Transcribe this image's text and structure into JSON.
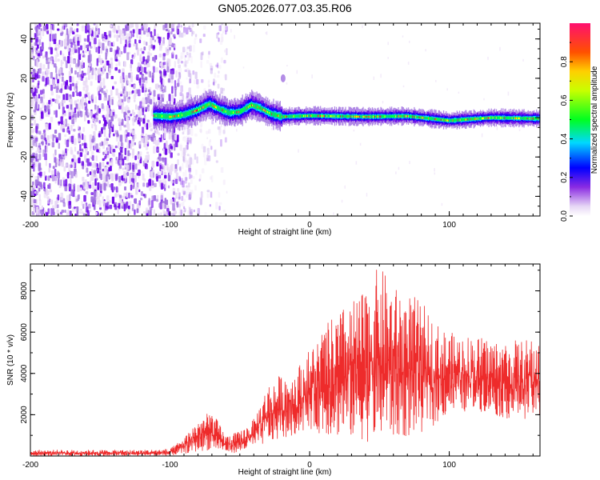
{
  "title": "GN05.2026.077.03.35.R06",
  "colors": {
    "trace": "#ee2b2b",
    "colormap": [
      "#e8d8f5",
      "#a070e0",
      "#6a00e8",
      "#0000ff",
      "#00e0ff",
      "#00ff40",
      "#ffff00",
      "#ff8000",
      "#ff0040",
      "#ff0080"
    ]
  },
  "chart_data": [
    {
      "type": "heatmap",
      "title": "GN05.2026.077.03.35.R06",
      "xlabel": "Height of straight line (km)",
      "ylabel": "Frequency (Hz)",
      "xlim": [
        -200,
        165
      ],
      "ylim": [
        -50,
        48
      ],
      "xticks": [
        -200,
        -100,
        0,
        100
      ],
      "yticks": [
        -40,
        -20,
        0,
        20,
        40
      ],
      "xtick_labels": [
        "-200",
        "-100",
        "0",
        "100"
      ],
      "ytick_labels": [
        "-40",
        "-20",
        "0",
        "20",
        "40"
      ],
      "signal_track": [
        {
          "x": -110,
          "y": 1.0
        },
        {
          "x": -100,
          "y": 0.5
        },
        {
          "x": -90,
          "y": 1.5
        },
        {
          "x": -80,
          "y": 4.0
        },
        {
          "x": -72,
          "y": 7.0
        },
        {
          "x": -65,
          "y": 4.5
        },
        {
          "x": -58,
          "y": 2.5
        },
        {
          "x": -50,
          "y": 3.0
        },
        {
          "x": -42,
          "y": 6.5
        },
        {
          "x": -36,
          "y": 5.0
        },
        {
          "x": -28,
          "y": 2.0
        },
        {
          "x": -20,
          "y": 0.5
        },
        {
          "x": 0,
          "y": 1.0
        },
        {
          "x": 40,
          "y": 0.5
        },
        {
          "x": 70,
          "y": 0.8
        },
        {
          "x": 100,
          "y": -1.5
        },
        {
          "x": 130,
          "y": 0.0
        },
        {
          "x": 165,
          "y": -0.5
        }
      ],
      "noise_region_x": [
        -200,
        -85
      ],
      "colorbar": {
        "label": "Normalized spectral amplitude",
        "ticks": [
          0.0,
          0.2,
          0.4,
          0.6,
          0.8
        ],
        "tick_labels": [
          "0.0",
          "0.2",
          "0.4",
          "0.6",
          "0.8"
        ],
        "range": [
          0,
          1
        ]
      }
    },
    {
      "type": "line",
      "xlabel": "Height of straight line (km)",
      "ylabel": "SNR (10 * v/v)",
      "xlim": [
        -200,
        165
      ],
      "ylim": [
        0,
        9300
      ],
      "xticks": [
        -200,
        -100,
        0,
        100
      ],
      "yticks": [
        2000,
        4000,
        6000,
        8000
      ],
      "xtick_labels": [
        "-200",
        "-100",
        "0",
        "100"
      ],
      "ytick_labels": [
        "2000",
        "4000",
        "6000",
        "8000"
      ],
      "series": [
        {
          "name": "SNR",
          "envelope": [
            {
              "x": -200,
              "low": 0,
              "high": 300
            },
            {
              "x": -120,
              "low": 0,
              "high": 300
            },
            {
              "x": -100,
              "low": 0,
              "high": 350
            },
            {
              "x": -90,
              "low": 100,
              "high": 900
            },
            {
              "x": -80,
              "low": 200,
              "high": 1800
            },
            {
              "x": -70,
              "low": 300,
              "high": 2200
            },
            {
              "x": -60,
              "low": 150,
              "high": 1000
            },
            {
              "x": -50,
              "low": 150,
              "high": 1200
            },
            {
              "x": -40,
              "low": 400,
              "high": 1800
            },
            {
              "x": -30,
              "low": 600,
              "high": 3500
            },
            {
              "x": -20,
              "low": 800,
              "high": 4000
            },
            {
              "x": -10,
              "low": 1000,
              "high": 4200
            },
            {
              "x": 0,
              "low": 1300,
              "high": 5200
            },
            {
              "x": 10,
              "low": 1000,
              "high": 6200
            },
            {
              "x": 20,
              "low": 900,
              "high": 7000
            },
            {
              "x": 30,
              "low": 800,
              "high": 7500
            },
            {
              "x": 40,
              "low": 700,
              "high": 8000
            },
            {
              "x": 50,
              "low": 600,
              "high": 9300
            },
            {
              "x": 60,
              "low": 800,
              "high": 8200
            },
            {
              "x": 70,
              "low": 900,
              "high": 8000
            },
            {
              "x": 80,
              "low": 1100,
              "high": 7500
            },
            {
              "x": 90,
              "low": 1500,
              "high": 6500
            },
            {
              "x": 100,
              "low": 2000,
              "high": 6000
            },
            {
              "x": 120,
              "low": 2200,
              "high": 5800
            },
            {
              "x": 140,
              "low": 1800,
              "high": 5600
            },
            {
              "x": 165,
              "low": 1800,
              "high": 5700
            }
          ]
        }
      ]
    }
  ]
}
